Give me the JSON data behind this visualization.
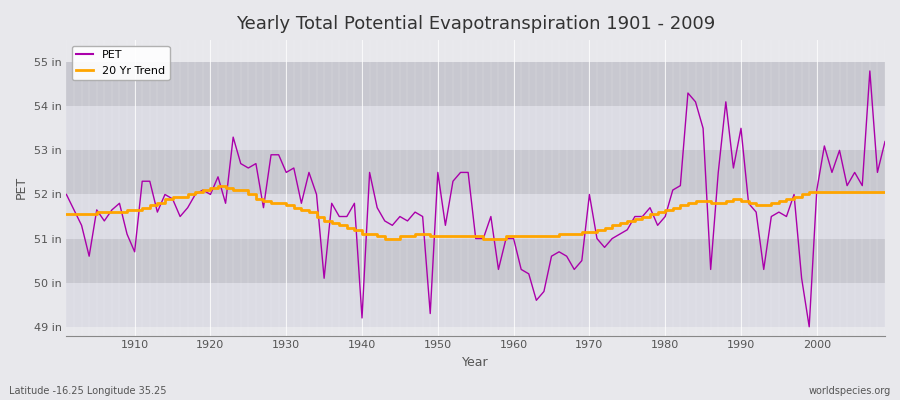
{
  "title": "Yearly Total Potential Evapotranspiration 1901 - 2009",
  "xlabel": "Year",
  "ylabel": "PET",
  "subtitle_left": "Latitude -16.25 Longitude 35.25",
  "subtitle_right": "worldspecies.org",
  "pet_color": "#AA00AA",
  "trend_color": "#FFA500",
  "bg_color": "#E8E8EC",
  "band_light": "#DCDCE4",
  "band_dark": "#C8C8D0",
  "ylim": [
    48.8,
    55.5
  ],
  "yticks": [
    49,
    50,
    51,
    52,
    53,
    54,
    55
  ],
  "ytick_labels": [
    "49 in",
    "50 in",
    "51 in",
    "52 in",
    "53 in",
    "54 in",
    "55 in"
  ],
  "xlim": [
    1901,
    2009
  ],
  "xticks": [
    1910,
    1920,
    1930,
    1940,
    1950,
    1960,
    1970,
    1980,
    1990,
    2000
  ],
  "years": [
    1901,
    1902,
    1903,
    1904,
    1905,
    1906,
    1907,
    1908,
    1909,
    1910,
    1911,
    1912,
    1913,
    1914,
    1915,
    1916,
    1917,
    1918,
    1919,
    1920,
    1921,
    1922,
    1923,
    1924,
    1925,
    1926,
    1927,
    1928,
    1929,
    1930,
    1931,
    1932,
    1933,
    1934,
    1935,
    1936,
    1937,
    1938,
    1939,
    1940,
    1941,
    1942,
    1943,
    1944,
    1945,
    1946,
    1947,
    1948,
    1949,
    1950,
    1951,
    1952,
    1953,
    1954,
    1955,
    1956,
    1957,
    1958,
    1959,
    1960,
    1961,
    1962,
    1963,
    1964,
    1965,
    1966,
    1967,
    1968,
    1969,
    1970,
    1971,
    1972,
    1973,
    1974,
    1975,
    1976,
    1977,
    1978,
    1979,
    1980,
    1981,
    1982,
    1983,
    1984,
    1985,
    1986,
    1987,
    1988,
    1989,
    1990,
    1991,
    1992,
    1993,
    1994,
    1995,
    1996,
    1997,
    1998,
    1999,
    2000,
    2001,
    2002,
    2003,
    2004,
    2005,
    2006,
    2007,
    2008,
    2009
  ],
  "pet_values": [
    52.0,
    51.65,
    51.3,
    50.6,
    51.65,
    51.4,
    51.65,
    51.8,
    51.1,
    50.7,
    52.3,
    52.3,
    51.6,
    52.0,
    51.9,
    51.5,
    51.7,
    52.0,
    52.1,
    52.0,
    52.4,
    51.8,
    53.3,
    52.7,
    52.6,
    52.7,
    51.7,
    52.9,
    52.9,
    52.5,
    52.6,
    51.8,
    52.5,
    52.0,
    50.1,
    51.8,
    51.5,
    51.5,
    51.8,
    49.2,
    52.5,
    51.7,
    51.4,
    51.3,
    51.5,
    51.4,
    51.6,
    51.5,
    49.3,
    52.5,
    51.3,
    52.3,
    52.5,
    52.5,
    51.0,
    51.0,
    51.5,
    50.3,
    51.0,
    51.0,
    50.3,
    50.2,
    49.6,
    49.8,
    50.6,
    50.7,
    50.6,
    50.3,
    50.5,
    52.0,
    51.0,
    50.8,
    51.0,
    51.1,
    51.2,
    51.5,
    51.5,
    51.7,
    51.3,
    51.5,
    52.1,
    52.2,
    54.3,
    54.1,
    53.5,
    50.3,
    52.5,
    54.1,
    52.6,
    53.5,
    51.8,
    51.6,
    50.3,
    51.5,
    51.6,
    51.5,
    52.0,
    50.1,
    49.0,
    52.1,
    53.1,
    52.5,
    53.0,
    52.2,
    52.5,
    52.2,
    54.8,
    52.5,
    53.2
  ],
  "trend_years": [
    1901,
    1902,
    1903,
    1904,
    1905,
    1906,
    1907,
    1908,
    1909,
    1910,
    1911,
    1912,
    1913,
    1914,
    1915,
    1916,
    1917,
    1918,
    1919,
    1920,
    1921,
    1922,
    1923,
    1924,
    1925,
    1926,
    1927,
    1928,
    1929,
    1930,
    1931,
    1932,
    1933,
    1934,
    1935,
    1936,
    1937,
    1938,
    1939,
    1940,
    1941,
    1942,
    1943,
    1944,
    1945,
    1946,
    1947,
    1948,
    1949,
    1950,
    1951,
    1952,
    1953,
    1954,
    1955,
    1956,
    1957,
    1958,
    1959,
    1960,
    1961,
    1962,
    1963,
    1964,
    1965,
    1966,
    1967,
    1968,
    1969,
    1970,
    1971,
    1972,
    1973,
    1974,
    1975,
    1976,
    1977,
    1978,
    1979,
    1980,
    1981,
    1982,
    1983,
    1984,
    1985,
    1986,
    1987,
    1988,
    1989,
    1990,
    1991,
    1992,
    1993,
    1994,
    1995,
    1996,
    1997,
    1998,
    1999,
    2000,
    2001,
    2002,
    2003,
    2004,
    2005,
    2006,
    2007,
    2008,
    2009
  ],
  "trend_values": [
    51.55,
    51.55,
    51.55,
    51.55,
    51.6,
    51.6,
    51.6,
    51.6,
    51.65,
    51.65,
    51.7,
    51.75,
    51.8,
    51.9,
    51.95,
    51.95,
    52.0,
    52.05,
    52.1,
    52.15,
    52.2,
    52.15,
    52.1,
    52.1,
    52.0,
    51.9,
    51.85,
    51.8,
    51.8,
    51.75,
    51.7,
    51.65,
    51.6,
    51.5,
    51.4,
    51.35,
    51.3,
    51.25,
    51.2,
    51.1,
    51.1,
    51.05,
    51.0,
    51.0,
    51.05,
    51.05,
    51.1,
    51.1,
    51.05,
    51.05,
    51.05,
    51.05,
    51.05,
    51.05,
    51.05,
    51.0,
    51.0,
    51.0,
    51.05,
    51.05,
    51.05,
    51.05,
    51.05,
    51.05,
    51.05,
    51.1,
    51.1,
    51.1,
    51.15,
    51.15,
    51.2,
    51.25,
    51.3,
    51.35,
    51.4,
    51.45,
    51.5,
    51.55,
    51.6,
    51.65,
    51.7,
    51.75,
    51.8,
    51.85,
    51.85,
    51.8,
    51.8,
    51.85,
    51.9,
    51.85,
    51.8,
    51.75,
    51.75,
    51.8,
    51.85,
    51.9,
    51.95,
    52.0,
    52.05,
    52.05,
    52.05,
    52.05,
    52.05,
    52.05,
    52.05,
    52.05,
    52.05,
    52.05,
    52.05
  ]
}
